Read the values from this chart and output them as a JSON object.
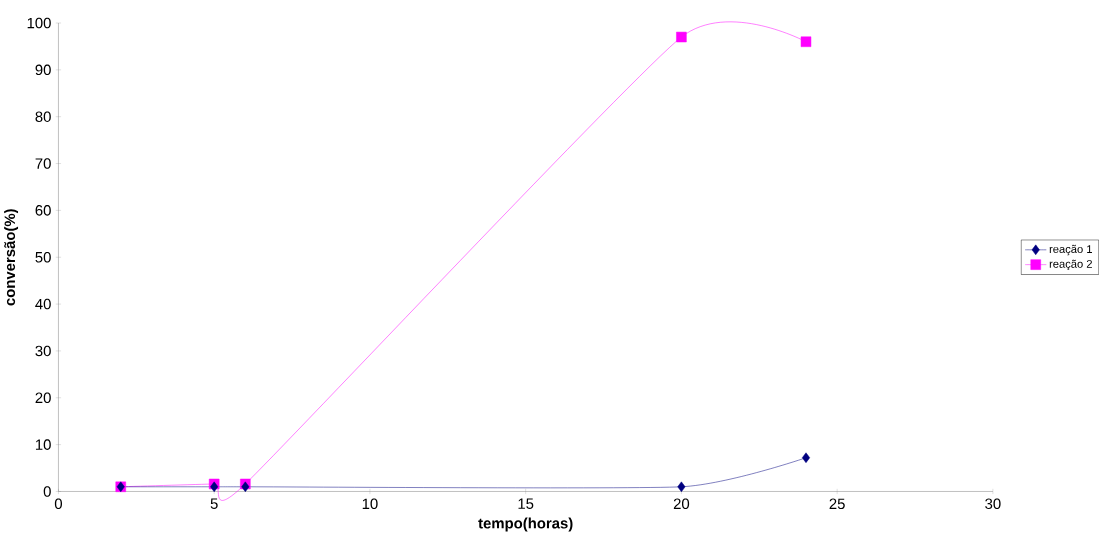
{
  "chart_data": {
    "type": "line",
    "xlabel": "tempo(horas)",
    "ylabel": "conversão(%)",
    "xlim": [
      0,
      30
    ],
    "xticks": [
      0,
      5,
      10,
      15,
      20,
      25,
      30
    ],
    "ylim": [
      0,
      100
    ],
    "yticks": [
      0,
      10,
      20,
      30,
      40,
      50,
      60,
      70,
      80,
      90,
      100
    ],
    "legend": "right",
    "grid": false,
    "series": [
      {
        "name": "reação 1",
        "color": "#000080",
        "marker": "diamond",
        "x": [
          2,
          5,
          6,
          20,
          24
        ],
        "values": [
          1,
          1,
          1,
          1,
          7.2
        ]
      },
      {
        "name": "reação 2",
        "color": "#ff00ff",
        "marker": "square",
        "x": [
          2,
          5,
          6,
          20,
          24
        ],
        "values": [
          1,
          1.6,
          1.6,
          97,
          96
        ]
      }
    ]
  }
}
